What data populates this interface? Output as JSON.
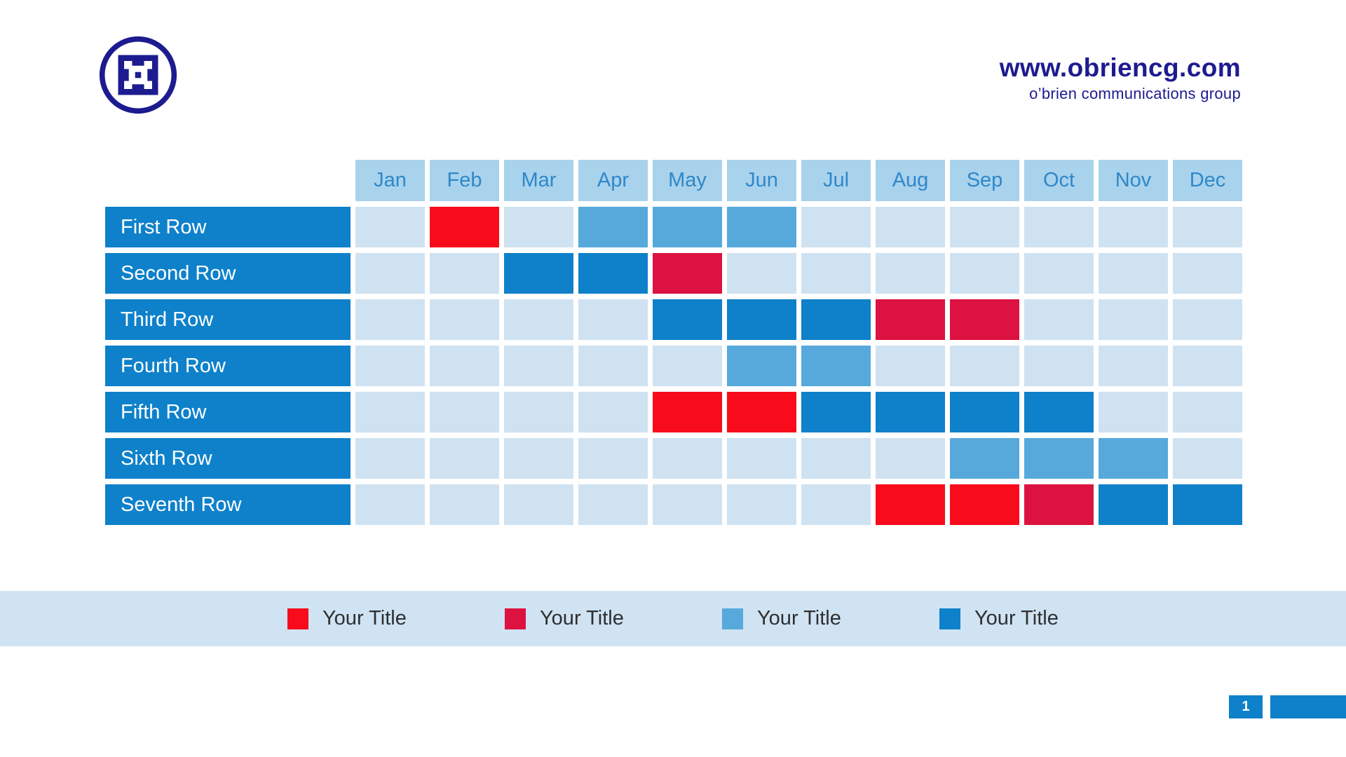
{
  "header": {
    "website": "www.obriencg.com",
    "tagline": "o’brien communications group"
  },
  "colors": {
    "navy": "#1d1b8f",
    "dark_blue": "#0e81ca",
    "medium_blue": "#57a9dc",
    "bright_red": "#f80c1c",
    "crimson": "#dc1240",
    "light_cell": "#cfe2f2",
    "month_header_bg": "#a9d2ec",
    "month_header_text": "#2e88c9",
    "legend_band_bg": "#cfe3f3"
  },
  "chart_data": {
    "type": "heatmap",
    "subtype": "gantt-calendar",
    "title": "",
    "columns": [
      "Jan",
      "Feb",
      "Mar",
      "Apr",
      "May",
      "Jun",
      "Jul",
      "Aug",
      "Sep",
      "Oct",
      "Nov",
      "Dec"
    ],
    "rows": [
      {
        "label": "First Row",
        "cells": [
          "none",
          "bright_red",
          "none",
          "medium_blue",
          "medium_blue",
          "medium_blue",
          "none",
          "none",
          "none",
          "none",
          "none",
          "none"
        ]
      },
      {
        "label": "Second Row",
        "cells": [
          "none",
          "none",
          "dark_blue",
          "dark_blue",
          "crimson",
          "none",
          "none",
          "none",
          "none",
          "none",
          "none",
          "none"
        ]
      },
      {
        "label": "Third Row",
        "cells": [
          "none",
          "none",
          "none",
          "none",
          "dark_blue",
          "dark_blue",
          "dark_blue",
          "crimson",
          "crimson",
          "none",
          "none",
          "none"
        ]
      },
      {
        "label": "Fourth Row",
        "cells": [
          "none",
          "none",
          "none",
          "none",
          "none",
          "medium_blue",
          "medium_blue",
          "none",
          "none",
          "none",
          "none",
          "none"
        ]
      },
      {
        "label": "Fifth Row",
        "cells": [
          "none",
          "none",
          "none",
          "none",
          "bright_red",
          "bright_red",
          "dark_blue",
          "dark_blue",
          "dark_blue",
          "dark_blue",
          "none",
          "none"
        ]
      },
      {
        "label": "Sixth Row",
        "cells": [
          "none",
          "none",
          "none",
          "none",
          "none",
          "none",
          "none",
          "none",
          "medium_blue",
          "medium_blue",
          "medium_blue",
          "none"
        ]
      },
      {
        "label": "Seventh Row",
        "cells": [
          "none",
          "none",
          "none",
          "none",
          "none",
          "none",
          "none",
          "bright_red",
          "bright_red",
          "crimson",
          "dark_blue",
          "dark_blue"
        ]
      }
    ],
    "legend": [
      {
        "color": "bright_red",
        "label": "Your Title"
      },
      {
        "color": "crimson",
        "label": "Your Title"
      },
      {
        "color": "medium_blue",
        "label": "Your Title"
      },
      {
        "color": "dark_blue",
        "label": "Your Title"
      }
    ],
    "layout": {
      "legend_position": "bottom",
      "grid": "off"
    }
  },
  "footer": {
    "page_number": "1"
  }
}
